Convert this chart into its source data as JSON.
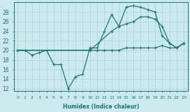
{
  "xlabel": "Humidex (Indice chaleur)",
  "bg_color": "#cce9ed",
  "grid_color": "#aad4d9",
  "line_color": "#1e7575",
  "ylim": [
    11.5,
    30.0
  ],
  "xlim": [
    -0.5,
    23.5
  ],
  "yticks": [
    12,
    14,
    16,
    18,
    20,
    22,
    24,
    26,
    28
  ],
  "xticks": [
    0,
    1,
    2,
    3,
    4,
    5,
    6,
    7,
    8,
    9,
    10,
    11,
    12,
    13,
    14,
    15,
    16,
    17,
    18,
    19,
    20,
    21,
    22,
    23
  ],
  "curve1_x": [
    0,
    1,
    2,
    3,
    4,
    5,
    6,
    7,
    8,
    9,
    10,
    11,
    12,
    13,
    14,
    15,
    16,
    17,
    18,
    19,
    20,
    21,
    22,
    23
  ],
  "curve1_y": [
    20,
    20,
    19,
    19.5,
    20,
    17,
    17,
    12,
    14.5,
    15,
    20.5,
    20.5,
    24,
    27.5,
    25,
    29,
    29.3,
    29,
    28.5,
    28,
    23,
    21.5,
    20.5,
    21.5
  ],
  "curve2_x": [
    0,
    10,
    13,
    14,
    15,
    16,
    17,
    18,
    19,
    20,
    21,
    22,
    23
  ],
  "curve2_y": [
    20,
    20,
    24,
    25,
    25.5,
    26,
    27,
    27,
    26.5,
    25,
    21.5,
    20.5,
    21.5
  ],
  "curve3_x": [
    0,
    10,
    11,
    12,
    13,
    14,
    15,
    16,
    17,
    18,
    19,
    20,
    21,
    22,
    23
  ],
  "curve3_y": [
    20,
    20,
    20,
    20,
    20,
    20,
    20.5,
    20.5,
    20.5,
    20.5,
    20.5,
    21,
    20.5,
    20.5,
    21.5
  ]
}
